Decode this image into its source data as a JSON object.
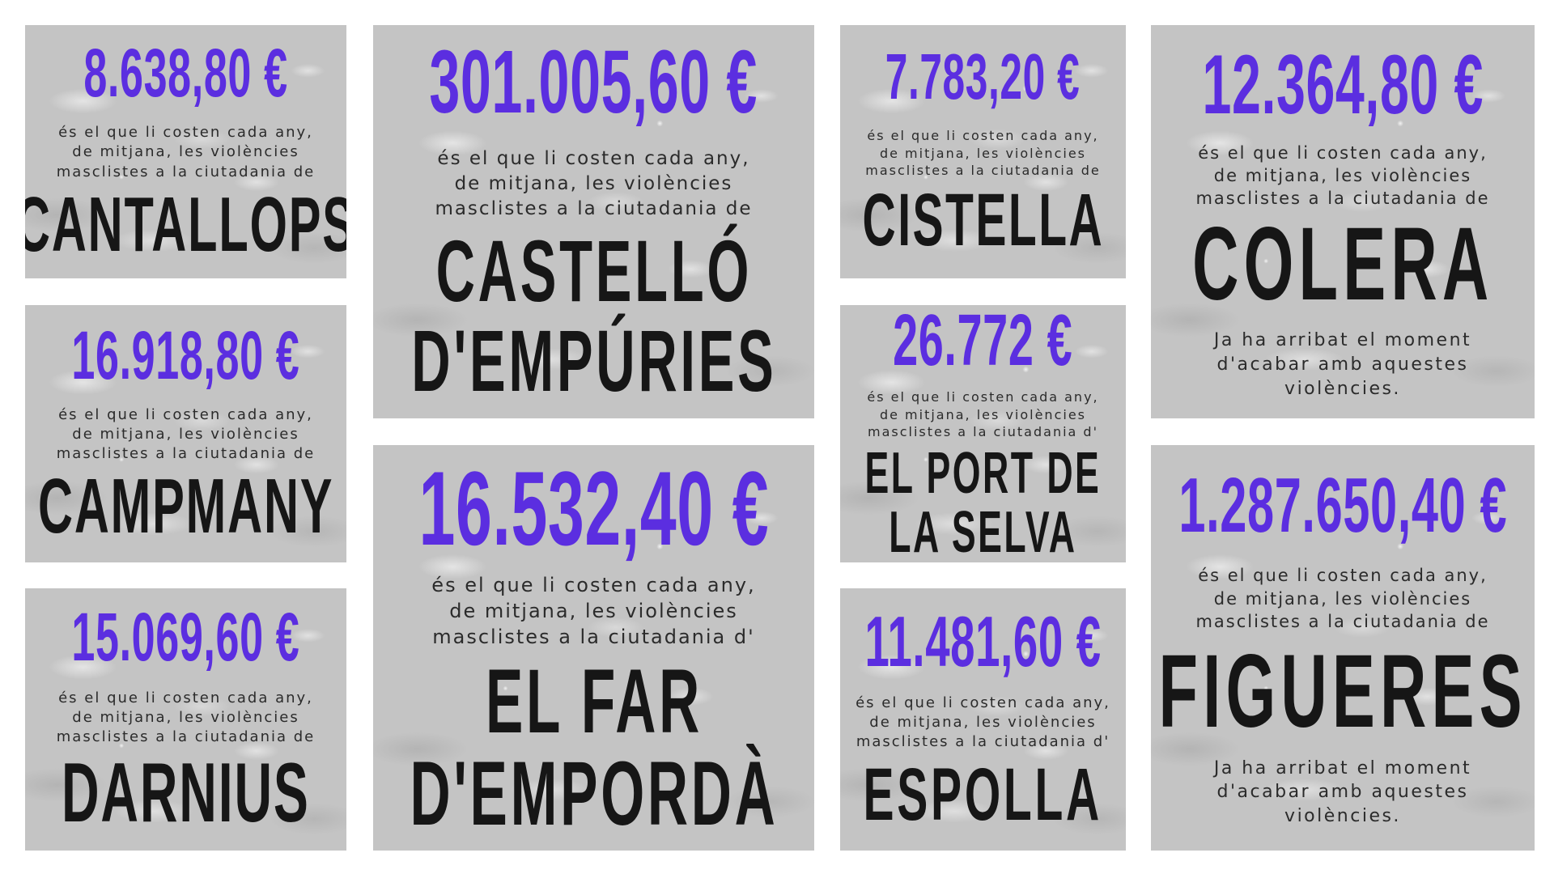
{
  "desc_lines": [
    "és el que li costen cada any,",
    "de mitjana, les violències"
  ],
  "cta_lines": [
    "Ja ha arribat el moment",
    "d'acabar amb aquestes",
    "violències."
  ],
  "cards": {
    "cantallops": {
      "amount": "8.638,80 €",
      "desc_last": "masclistes a la ciutadania de",
      "town_lines": [
        "CANTALLOPS"
      ]
    },
    "campmany": {
      "amount": "16.918,80 €",
      "desc_last": "masclistes a la ciutadania de",
      "town_lines": [
        "CAMPMANY"
      ]
    },
    "darnius": {
      "amount": "15.069,60 €",
      "desc_last": "masclistes a la ciutadania de",
      "town_lines": [
        "DARNIUS"
      ]
    },
    "castello": {
      "amount": "301.005,60 €",
      "desc_last": "masclistes a la ciutadania de",
      "town_lines": [
        "CASTELLÓ",
        "D'EMPÚRIES"
      ]
    },
    "elfar": {
      "amount": "16.532,40 €",
      "desc_last": "masclistes a la ciutadania d'",
      "town_lines": [
        "EL FAR",
        "D'EMPORDÀ"
      ]
    },
    "cistella": {
      "amount": "7.783,20 €",
      "desc_last": "masclistes a la ciutadania de",
      "town_lines": [
        "CISTELLA"
      ]
    },
    "port": {
      "amount": "26.772 €",
      "desc_last": "masclistes a la ciutadania d'",
      "town_lines": [
        "EL PORT DE",
        "LA SELVA"
      ]
    },
    "espolla": {
      "amount": "11.481,60 €",
      "desc_last": "masclistes a la ciutadania d'",
      "town_lines": [
        "ESPOLLA"
      ]
    },
    "colera": {
      "amount": "12.364,80 €",
      "desc_last": "masclistes a la ciutadania de",
      "town_lines": [
        "COLERA"
      ]
    },
    "figueres": {
      "amount": "1.287.650,40 €",
      "desc_last": "masclistes a la ciutadania de",
      "town_lines": [
        "FIGUERES"
      ]
    }
  },
  "colors": {
    "amount": "#5b2ee0",
    "town": "#161616",
    "text": "#2b2b2b",
    "card_background": "#c4c4c4"
  }
}
